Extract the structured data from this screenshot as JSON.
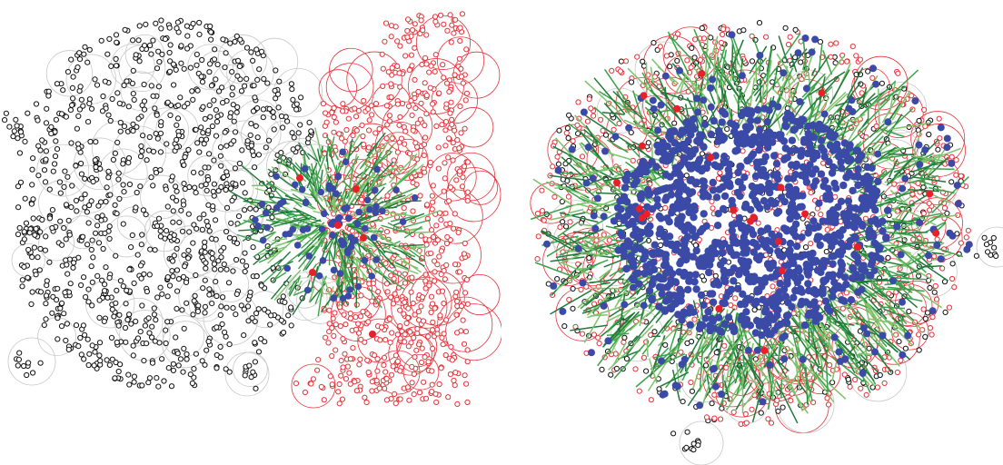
{
  "figure": {
    "panels": [
      {
        "id": "left",
        "description_name": "segregated-population-left"
      },
      {
        "id": "right",
        "description_name": "mixed-population-right"
      }
    ],
    "colors": {
      "cellA_stroke": "#111111",
      "cellB_stroke": "#e8323a",
      "domainA_ring": "#c8c8c8",
      "domainB_ring": "#e8323a",
      "tip_fill": "#3a4aa6",
      "active_fill": "#e8202a",
      "filament_light": "#7cc36a",
      "filament_mid": "#3aa24a",
      "filament_dark": "#1f7a3a"
    }
  }
}
